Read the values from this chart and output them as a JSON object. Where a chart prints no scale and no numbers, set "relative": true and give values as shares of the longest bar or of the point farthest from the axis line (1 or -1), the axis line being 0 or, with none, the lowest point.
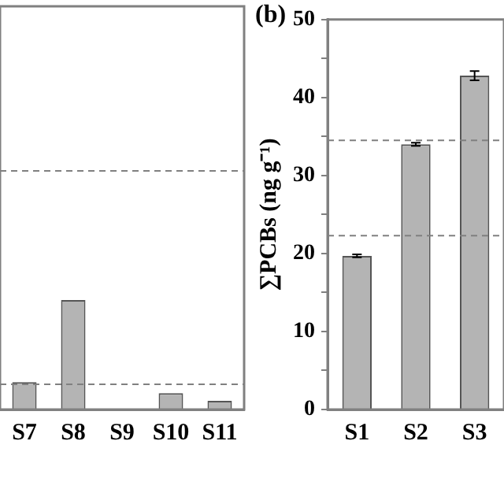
{
  "chart_data": [
    {
      "type": "bar",
      "categories": [
        "S7",
        "S8",
        "S9",
        "S10",
        "S11"
      ],
      "values": [
        0.25,
        1,
        null,
        0.15,
        0.08
      ],
      "relative": true,
      "color": "#b4b4b4",
      "ref_lines": [
        {
          "axis": "y",
          "value": 2.18,
          "line_style": "dashed",
          "color": "#808080"
        },
        {
          "axis": "y",
          "value": 0.23,
          "line_style": "dashed",
          "color": "#808080"
        }
      ],
      "grid": false,
      "legend": false
    },
    {
      "type": "bar",
      "annotations": [
        "(b)"
      ],
      "ylabel": "∑PCBs (ng g⁻¹)",
      "categories": [
        "S1",
        "S2",
        "S3"
      ],
      "values": [
        19.7,
        34.0,
        42.8
      ],
      "errors": [
        0.2,
        0.2,
        0.6
      ],
      "color": "#b4b4b4",
      "ylim": [
        0,
        50
      ],
      "yticks": [
        0,
        {
          "value": 5,
          "label": null
        },
        10,
        {
          "value": 15,
          "label": null
        },
        20,
        {
          "value": 25,
          "label": null
        },
        30,
        {
          "value": 35,
          "label": null
        },
        40,
        {
          "value": 45,
          "label": null
        },
        50
      ],
      "ref_lines": [
        {
          "axis": "y",
          "value": 34.5,
          "line_style": "dashed",
          "color": "#808080"
        },
        {
          "axis": "y",
          "value": 22.3,
          "line_style": "dashed",
          "color": "#808080"
        }
      ],
      "grid": false,
      "legend": false
    }
  ]
}
